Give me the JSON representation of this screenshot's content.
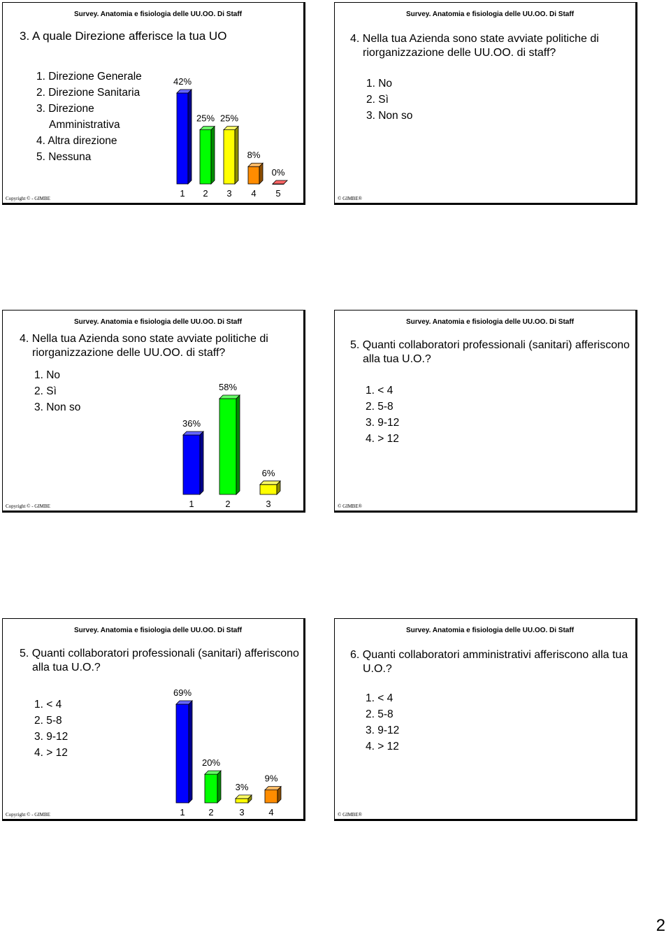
{
  "slides": [
    {
      "header": "Survey. Anatomia e fisiologia delle UU.OO. Di Staff",
      "question": "3. A quale Direzione afferisce la tua UO",
      "options": [
        "1. Direzione Generale",
        "2. Direzione Sanitaria",
        "3. Direzione Amministrativa",
        "4. Altra direzione",
        "5. Nessuna"
      ],
      "copyright": "Copyright © - GIMBE",
      "chart": {
        "type": "bar",
        "categories": [
          "1",
          "2",
          "3",
          "4",
          "5"
        ],
        "values": [
          42,
          25,
          25,
          8,
          0
        ],
        "value_labels": [
          "42%",
          "25%",
          "25%",
          "8%",
          "0%"
        ],
        "colors": [
          "#0000ff",
          "#00ff00",
          "#ffff00",
          "#ff8c00",
          "#ff0000"
        ]
      }
    },
    {
      "header": "Survey. Anatomia e fisiologia delle UU.OO. Di Staff",
      "question": "4. Nella tua Azienda sono state avviate politiche di riorganizzazione delle UU.OO. di staff?",
      "options": [
        "1. No",
        "2. Sì",
        "3. Non so"
      ],
      "copyright": "© GIMBE®"
    },
    {
      "header": "Survey. Anatomia e fisiologia delle UU.OO. Di Staff",
      "question": "4. Nella tua Azienda sono state avviate politiche di riorganizzazione delle UU.OO. di staff?",
      "options": [
        "1. No",
        "2. Sì",
        "3. Non so"
      ],
      "copyright": "Copyright © - GIMBE",
      "chart": {
        "type": "bar",
        "categories": [
          "1",
          "2",
          "3"
        ],
        "values": [
          36,
          58,
          6
        ],
        "value_labels": [
          "36%",
          "58%",
          "6%"
        ],
        "colors": [
          "#0000ff",
          "#00ff00",
          "#ffff00"
        ]
      }
    },
    {
      "header": "Survey. Anatomia e fisiologia delle UU.OO. Di Staff",
      "question": "5. Quanti collaboratori professionali (sanitari) afferiscono alla tua U.O.?",
      "options": [
        "1. < 4",
        "2. 5-8",
        "3. 9-12",
        "4. > 12"
      ],
      "copyright": "© GIMBE®"
    },
    {
      "header": "Survey. Anatomia e fisiologia delle UU.OO. Di Staff",
      "question": "5. Quanti collaboratori professionali (sanitari) afferiscono alla tua U.O.?",
      "options": [
        "1. < 4",
        "2. 5-8",
        "3. 9-12",
        "4. > 12"
      ],
      "copyright": "Copyright © - GIMBE",
      "chart": {
        "type": "bar",
        "categories": [
          "1",
          "2",
          "3",
          "4"
        ],
        "values": [
          69,
          20,
          3,
          9
        ],
        "value_labels": [
          "69%",
          "20%",
          "3%",
          "9%"
        ],
        "colors": [
          "#0000ff",
          "#00ff00",
          "#ffff00",
          "#ff8c00"
        ]
      }
    },
    {
      "header": "Survey. Anatomia e fisiologia delle UU.OO. Di Staff",
      "question": "6. Quanti collaboratori amministrativi afferiscono alla tua U.O.?",
      "options": [
        "1. < 4",
        "2. 5-8",
        "3. 9-12",
        "4. > 12"
      ],
      "copyright": "© GIMBE®"
    }
  ],
  "page_number": "2"
}
